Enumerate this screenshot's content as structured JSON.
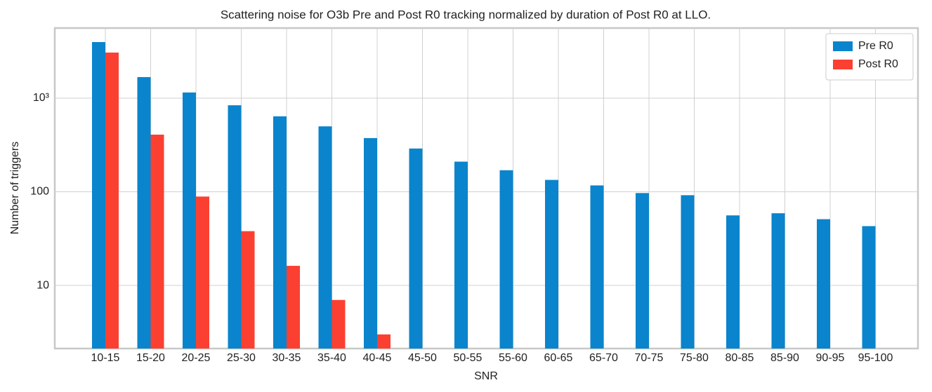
{
  "chart_data": {
    "type": "bar",
    "title": "Scattering noise for O3b Pre and Post R0 tracking normalized by duration of Post R0 at LLO.",
    "x_label": "SNR",
    "y_label": "Number of triggers",
    "categories": [
      "10-15",
      "15-20",
      "20-25",
      "25-30",
      "30-35",
      "35-40",
      "40-45",
      "45-50",
      "50-55",
      "55-60",
      "60-65",
      "65-70",
      "70-75",
      "75-80",
      "80-85",
      "85-90",
      "90-95",
      "95-100"
    ],
    "series": [
      {
        "name": "Pre R0",
        "color": "#0a84cc",
        "values": [
          3975,
          1680,
          1150,
          840,
          640,
          500,
          375,
          290,
          210,
          170,
          134,
          117,
          97,
          92,
          56,
          59,
          51,
          43
        ]
      },
      {
        "name": "Post R0",
        "color": "#fb4032",
        "values": [
          3070,
          408,
          89,
          38,
          16.2,
          7,
          3,
          null,
          null,
          null,
          null,
          null,
          null,
          null,
          null,
          null,
          null,
          null
        ]
      }
    ],
    "yscale": "log",
    "ylim": [
      2.12,
      5610
    ],
    "yticks": [
      10,
      100,
      {
        "value": 1000,
        "label": "10³"
      }
    ],
    "grid": true,
    "legend": "upper right"
  }
}
